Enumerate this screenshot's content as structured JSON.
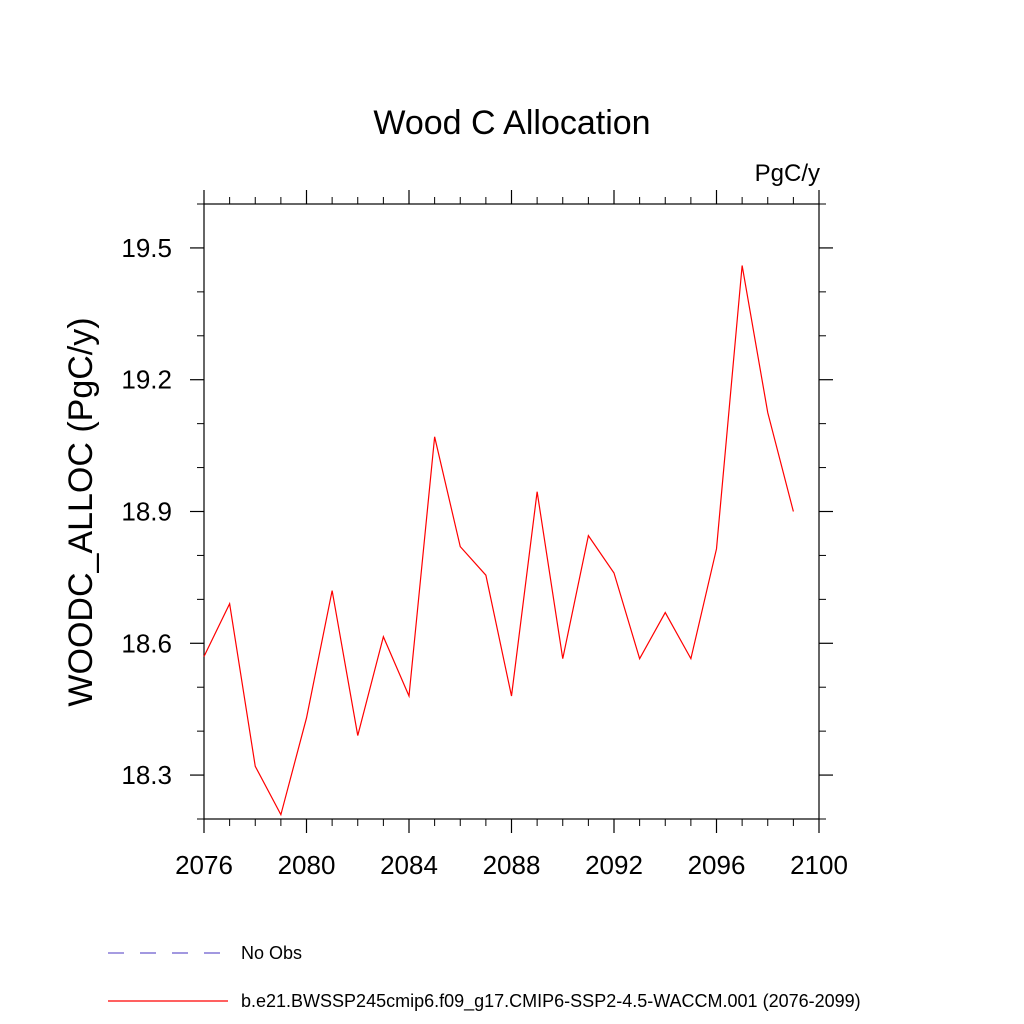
{
  "chart_data": {
    "type": "line",
    "title": "Wood C Allocation",
    "units_label": "PgC/y",
    "ylabel": "WOODC_ALLOC  (PgC/y)",
    "xlabel": "",
    "xlim": [
      2076,
      2100
    ],
    "ylim": [
      18.2,
      19.6
    ],
    "x_ticks": [
      2076,
      2080,
      2084,
      2088,
      2092,
      2096,
      2100
    ],
    "y_ticks": [
      18.3,
      18.6,
      18.9,
      19.2,
      19.5
    ],
    "x_tick_labels": [
      "2076",
      "2080",
      "2084",
      "2088",
      "2092",
      "2096",
      "2100"
    ],
    "y_tick_labels": [
      "18.3",
      "18.6",
      "18.9",
      "19.2",
      "19.5"
    ],
    "grid": false,
    "legend_position": "bottom",
    "series": [
      {
        "name": "b.e21.BWSSP245cmip6.f09_g17.CMIP6-SSP2-4.5-WACCM.001 (2076-2099)",
        "color": "#ff0000",
        "style": "solid",
        "x": [
          2076,
          2077,
          2078,
          2079,
          2080,
          2081,
          2082,
          2083,
          2084,
          2085,
          2086,
          2087,
          2088,
          2089,
          2090,
          2091,
          2092,
          2093,
          2094,
          2095,
          2096,
          2097,
          2098,
          2099
        ],
        "y": [
          18.57,
          18.69,
          18.32,
          18.21,
          18.43,
          18.72,
          18.39,
          18.615,
          18.48,
          19.07,
          18.82,
          18.755,
          18.48,
          18.945,
          18.565,
          18.845,
          18.76,
          18.565,
          18.67,
          18.565,
          18.815,
          19.46,
          19.125,
          18.9
        ]
      }
    ],
    "legend": [
      {
        "label": "No Obs",
        "color": "#6a5acd",
        "style": "dashed"
      },
      {
        "label": "b.e21.BWSSP245cmip6.f09_g17.CMIP6-SSP2-4.5-WACCM.001 (2076-2099)",
        "color": "#ff0000",
        "style": "solid"
      }
    ]
  }
}
